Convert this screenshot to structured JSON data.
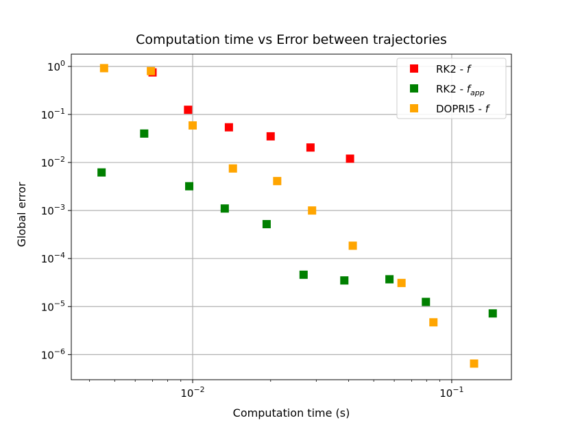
{
  "chart_data": {
    "type": "scatter",
    "title": "Computation time vs Error between trajectories",
    "xlabel": "Computation time (s)",
    "ylabel": "Global error",
    "xscale": "log",
    "yscale": "log",
    "xlim": [
      0.0034,
      0.17
    ],
    "ylim": [
      3e-07,
      1.8
    ],
    "grid": true,
    "legend_position": "top-right",
    "x_ticks": [
      {
        "value": 0.01,
        "base": "10",
        "exp": "−2"
      },
      {
        "value": 0.1,
        "base": "10",
        "exp": "−1"
      }
    ],
    "y_ticks": [
      {
        "value": 1,
        "base": "10",
        "exp": "0"
      },
      {
        "value": 0.1,
        "base": "10",
        "exp": "−1"
      },
      {
        "value": 0.01,
        "base": "10",
        "exp": "−2"
      },
      {
        "value": 0.001,
        "base": "10",
        "exp": "−3"
      },
      {
        "value": 0.0001,
        "base": "10",
        "exp": "−4"
      },
      {
        "value": 1e-05,
        "base": "10",
        "exp": "−5"
      },
      {
        "value": 1e-06,
        "base": "10",
        "exp": "−6"
      }
    ],
    "series": [
      {
        "name": "RK2 - f",
        "legend_main": "RK2 - ",
        "legend_italic": "f",
        "legend_sub": "",
        "color": "#ff0000",
        "points": [
          {
            "x": 0.007,
            "y": 0.75
          },
          {
            "x": 0.0096,
            "y": 0.125
          },
          {
            "x": 0.0138,
            "y": 0.054
          },
          {
            "x": 0.02,
            "y": 0.035
          },
          {
            "x": 0.0285,
            "y": 0.0205
          },
          {
            "x": 0.0405,
            "y": 0.012
          }
        ]
      },
      {
        "name": "RK2 - f_app",
        "legend_main": "RK2 - ",
        "legend_italic": "f",
        "legend_sub": "app",
        "color": "#008000",
        "points": [
          {
            "x": 0.00445,
            "y": 0.0062
          },
          {
            "x": 0.0065,
            "y": 0.04
          },
          {
            "x": 0.0097,
            "y": 0.0032
          },
          {
            "x": 0.0133,
            "y": 0.0011
          },
          {
            "x": 0.0193,
            "y": 0.00052
          },
          {
            "x": 0.0268,
            "y": 4.6e-05
          },
          {
            "x": 0.0385,
            "y": 3.5e-05
          },
          {
            "x": 0.0575,
            "y": 3.7e-05
          },
          {
            "x": 0.0795,
            "y": 1.25e-05
          },
          {
            "x": 0.144,
            "y": 7.2e-06
          }
        ]
      },
      {
        "name": "DOPRI5 - f",
        "legend_main": "DOPRI5 - ",
        "legend_italic": "f",
        "legend_sub": "",
        "color": "#ffa500",
        "points": [
          {
            "x": 0.00455,
            "y": 0.92
          },
          {
            "x": 0.0069,
            "y": 0.8
          },
          {
            "x": 0.01,
            "y": 0.059
          },
          {
            "x": 0.0143,
            "y": 0.0075
          },
          {
            "x": 0.0212,
            "y": 0.0041
          },
          {
            "x": 0.0289,
            "y": 0.001
          },
          {
            "x": 0.0415,
            "y": 0.000185
          },
          {
            "x": 0.064,
            "y": 3.1e-05
          },
          {
            "x": 0.085,
            "y": 4.7e-06
          },
          {
            "x": 0.122,
            "y": 6.5e-07
          }
        ]
      }
    ]
  }
}
